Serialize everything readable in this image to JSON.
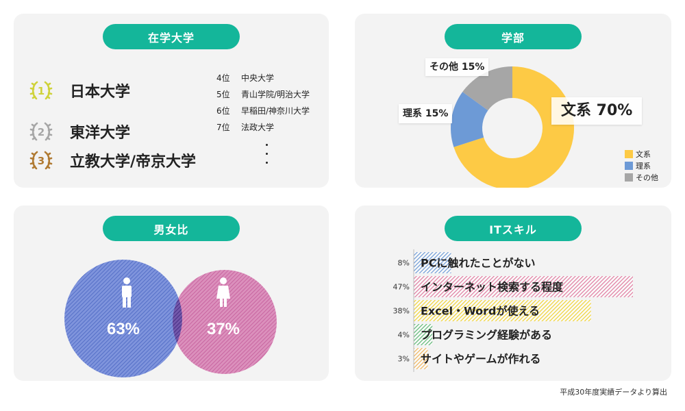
{
  "university": {
    "title": "在学大学",
    "top": [
      {
        "rank": "1",
        "name": "日本大学",
        "color": "#cfd23a"
      },
      {
        "rank": "2",
        "name": "東洋大学",
        "color": "#a6a6a6"
      },
      {
        "rank": "3",
        "name": "立教大学/帝京大学",
        "color": "#b07a32"
      }
    ],
    "others": [
      {
        "rank": "4位",
        "name": "中央大学"
      },
      {
        "rank": "5位",
        "name": "青山学院/明治大学"
      },
      {
        "rank": "6位",
        "name": "早稲田/神奈川大学"
      },
      {
        "rank": "7位",
        "name": "法政大学"
      }
    ]
  },
  "faculty": {
    "title": "学部",
    "labels": {
      "bunkei": "文系 70%",
      "rikei": "理系 15%",
      "other": "その他 15%"
    }
  },
  "gender": {
    "title": "男女比",
    "male_label": "63%",
    "female_label": "37%",
    "male_color": "#5a78cc",
    "female_color": "#d968a8"
  },
  "it": {
    "title": "ITスキル"
  },
  "footnote": "平成30年度実績データより算出",
  "chart_data": [
    {
      "type": "pie",
      "title": "学部",
      "categories": [
        "文系",
        "理系",
        "その他"
      ],
      "values": [
        70,
        15,
        15
      ],
      "colors": [
        "#fdca45",
        "#6d9ad6",
        "#a6a6a6"
      ],
      "legend": "bottom-right"
    },
    {
      "type": "pie",
      "title": "男女比",
      "categories": [
        "男性",
        "女性"
      ],
      "values": [
        63,
        37
      ],
      "value_labels": [
        "63%",
        "37%"
      ],
      "colors": [
        "#5a78cc",
        "#d968a8"
      ]
    },
    {
      "type": "bar",
      "orientation": "horizontal",
      "title": "ITスキル",
      "categories": [
        "PCに触れたことがない",
        "インターネット検索する程度",
        "Excel・Wordが使える",
        "プログラミング経験がある",
        "サイトやゲームが作れる"
      ],
      "values": [
        8,
        47,
        38,
        4,
        3
      ],
      "value_labels": [
        "8%",
        "47%",
        "38%",
        "4%",
        "3%"
      ],
      "colors": [
        "#6d9ad6",
        "#e07a9f",
        "#f0d232",
        "#5db874",
        "#f0b45a"
      ],
      "xlim": [
        0,
        50
      ]
    }
  ]
}
